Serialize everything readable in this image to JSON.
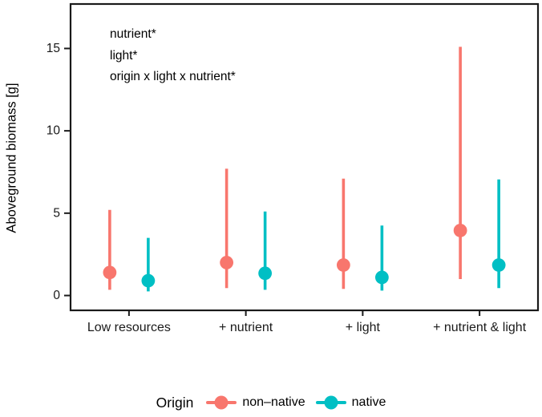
{
  "figure": {
    "background": "#ffffff",
    "text_color": "#1a1a1a"
  },
  "chart_data": {
    "type": "pointrange",
    "title": "",
    "xlabel": "",
    "ylabel": "Aboveground biomass [g]",
    "categories": [
      "Low resources",
      "+ nutrient",
      "+ light",
      "+ nutrient & light"
    ],
    "yticks": [
      0,
      5,
      10,
      15
    ],
    "ylim": [
      -0.9,
      17.7
    ],
    "grid": "off",
    "annotations": [
      "nutrient*",
      "light*",
      "origin x light x nutrient*"
    ],
    "series": [
      {
        "name": "non–native",
        "color": "#F8766D",
        "values": [
          1.4,
          2.0,
          1.85,
          3.95
        ],
        "lower": [
          0.35,
          0.45,
          0.4,
          1.0
        ],
        "upper": [
          5.2,
          7.7,
          7.1,
          15.1
        ]
      },
      {
        "name": "native",
        "color": "#00BFC4",
        "values": [
          0.9,
          1.35,
          1.1,
          1.85
        ],
        "lower": [
          0.25,
          0.35,
          0.3,
          0.45
        ],
        "upper": [
          3.5,
          5.1,
          4.25,
          7.05
        ]
      }
    ],
    "legend": {
      "title": "Origin",
      "position": "bottom"
    }
  }
}
